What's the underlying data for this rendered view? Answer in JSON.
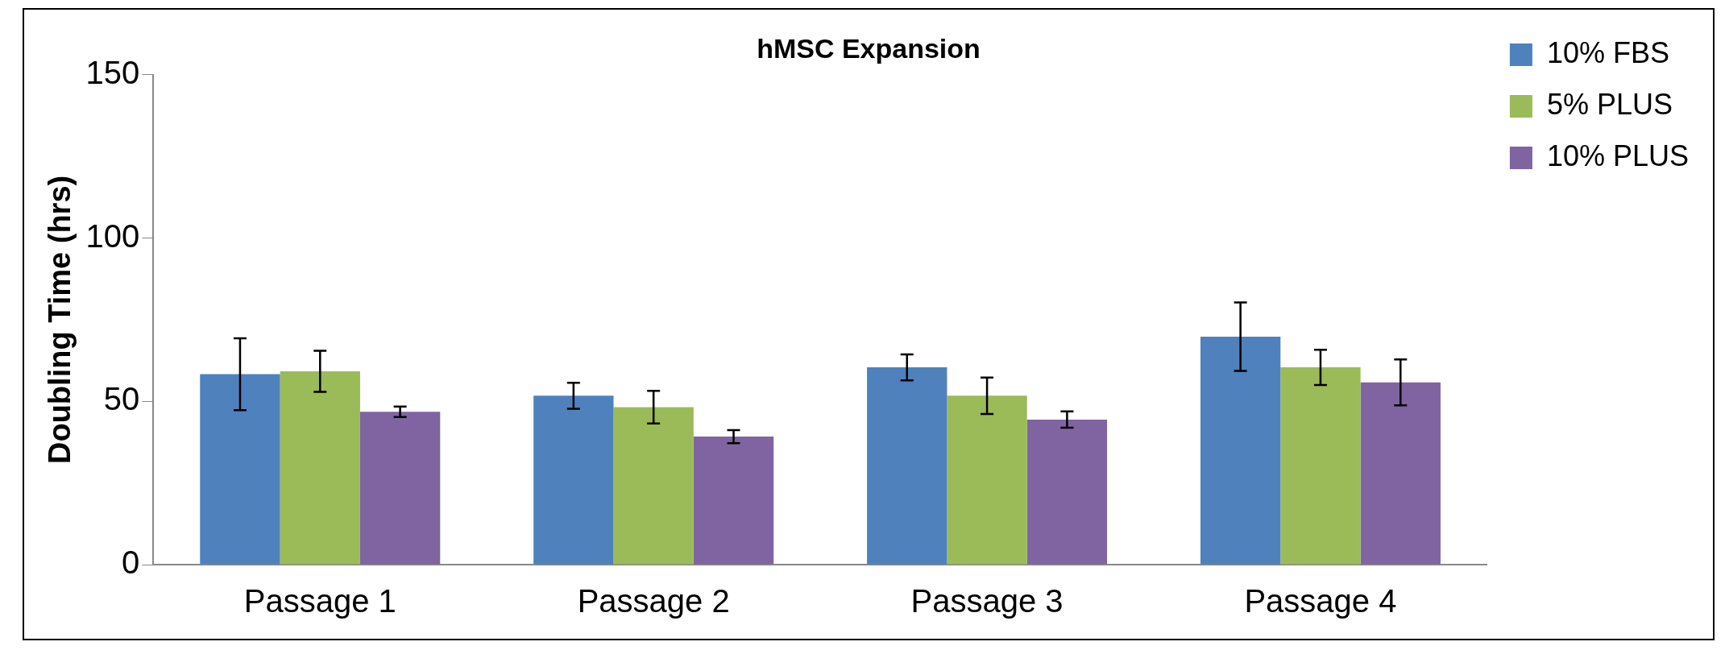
{
  "chart_data": {
    "type": "bar",
    "title": "hMSC Expansion",
    "ylabel": "Doubling Time (hrs)",
    "categories": [
      "Passage 1",
      "Passage 2",
      "Passage 3",
      "Passage 4"
    ],
    "series": [
      {
        "name": "10% FBS",
        "color": "#4f81bd",
        "values": [
          58.3,
          51.7,
          60.4,
          69.8
        ],
        "errors": [
          11,
          4,
          4,
          10.5
        ]
      },
      {
        "name": "5% PLUS",
        "color": "#9bbb59",
        "values": [
          59.2,
          48.2,
          51.7,
          60.4
        ],
        "errors": [
          6.3,
          5,
          5.6,
          5.4
        ]
      },
      {
        "name": "10% PLUS",
        "color": "#8064a2",
        "values": [
          46.8,
          39.2,
          44.4,
          55.8
        ],
        "errors": [
          1.6,
          2,
          2.5,
          7
        ]
      }
    ],
    "ylim": [
      0,
      150
    ],
    "yticks": [
      0,
      50,
      100,
      150
    ],
    "grid": false,
    "legend": "top right"
  }
}
